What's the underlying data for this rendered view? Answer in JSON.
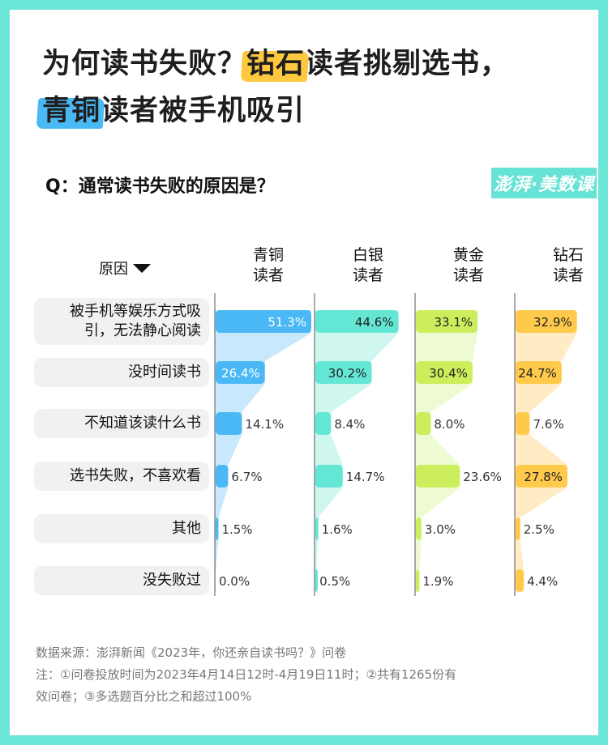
{
  "title": {
    "line1_pre": "为何读书失败？",
    "line1_hl": "钻石",
    "line1_post": "读者挑剔选书，",
    "line2_hl": "青铜",
    "line2_post": "读者被手机吸引"
  },
  "question": "Q：通常读书失败的原因是？",
  "logo": "澎湃·美数课",
  "chart_data": {
    "type": "bar",
    "orientation": "horizontal",
    "category_header": "原因",
    "categories": [
      "被手机等娱乐方式吸引，无法静心阅读",
      "没时间读书",
      "不知道该读什么书",
      "选书失败，不喜欢看",
      "其他",
      "没失败过"
    ],
    "category_lines": [
      [
        "被手机等娱乐方式吸",
        "引，无法静心阅读"
      ],
      [
        "没时间读书"
      ],
      [
        "不知道该读什么书"
      ],
      [
        "选书失败，不喜欢看"
      ],
      [
        "其他"
      ],
      [
        "没失败过"
      ]
    ],
    "unit": "%",
    "series": [
      {
        "name": "青铜读者",
        "name_lines": [
          "青铜",
          "读者"
        ],
        "values": [
          51.3,
          26.4,
          14.1,
          6.7,
          1.5,
          0.0
        ],
        "color": "#4ab8f5",
        "light": "#c8e8fb",
        "inner_text": "#ffffff"
      },
      {
        "name": "白银读者",
        "name_lines": [
          "白银",
          "读者"
        ],
        "values": [
          44.6,
          30.2,
          8.4,
          14.7,
          1.6,
          0.5
        ],
        "color": "#64e6d5",
        "light": "#d0f6f0",
        "inner_text": "#222222"
      },
      {
        "name": "黄金读者",
        "name_lines": [
          "黄金",
          "读者"
        ],
        "values": [
          33.1,
          30.4,
          8.0,
          23.6,
          3.0,
          1.9
        ],
        "color": "#cdee5c",
        "light": "#eefad2",
        "inner_text": "#222222"
      },
      {
        "name": "钻石读者",
        "name_lines": [
          "钻石",
          "读者"
        ],
        "values": [
          32.9,
          24.7,
          7.6,
          27.8,
          2.5,
          4.4
        ],
        "color": "#ffc94c",
        "light": "#ffecc4",
        "inner_text": "#222222"
      }
    ]
  },
  "source": {
    "line1": "数据来源：澎湃新闻《2023年，你还亲自读书吗？》问卷",
    "line2": "注：①问卷投放时间为2023年4月14日12时-4月19日11时；②共有1265份有",
    "line3": "效问卷；③多选题百分比之和超过100%"
  }
}
